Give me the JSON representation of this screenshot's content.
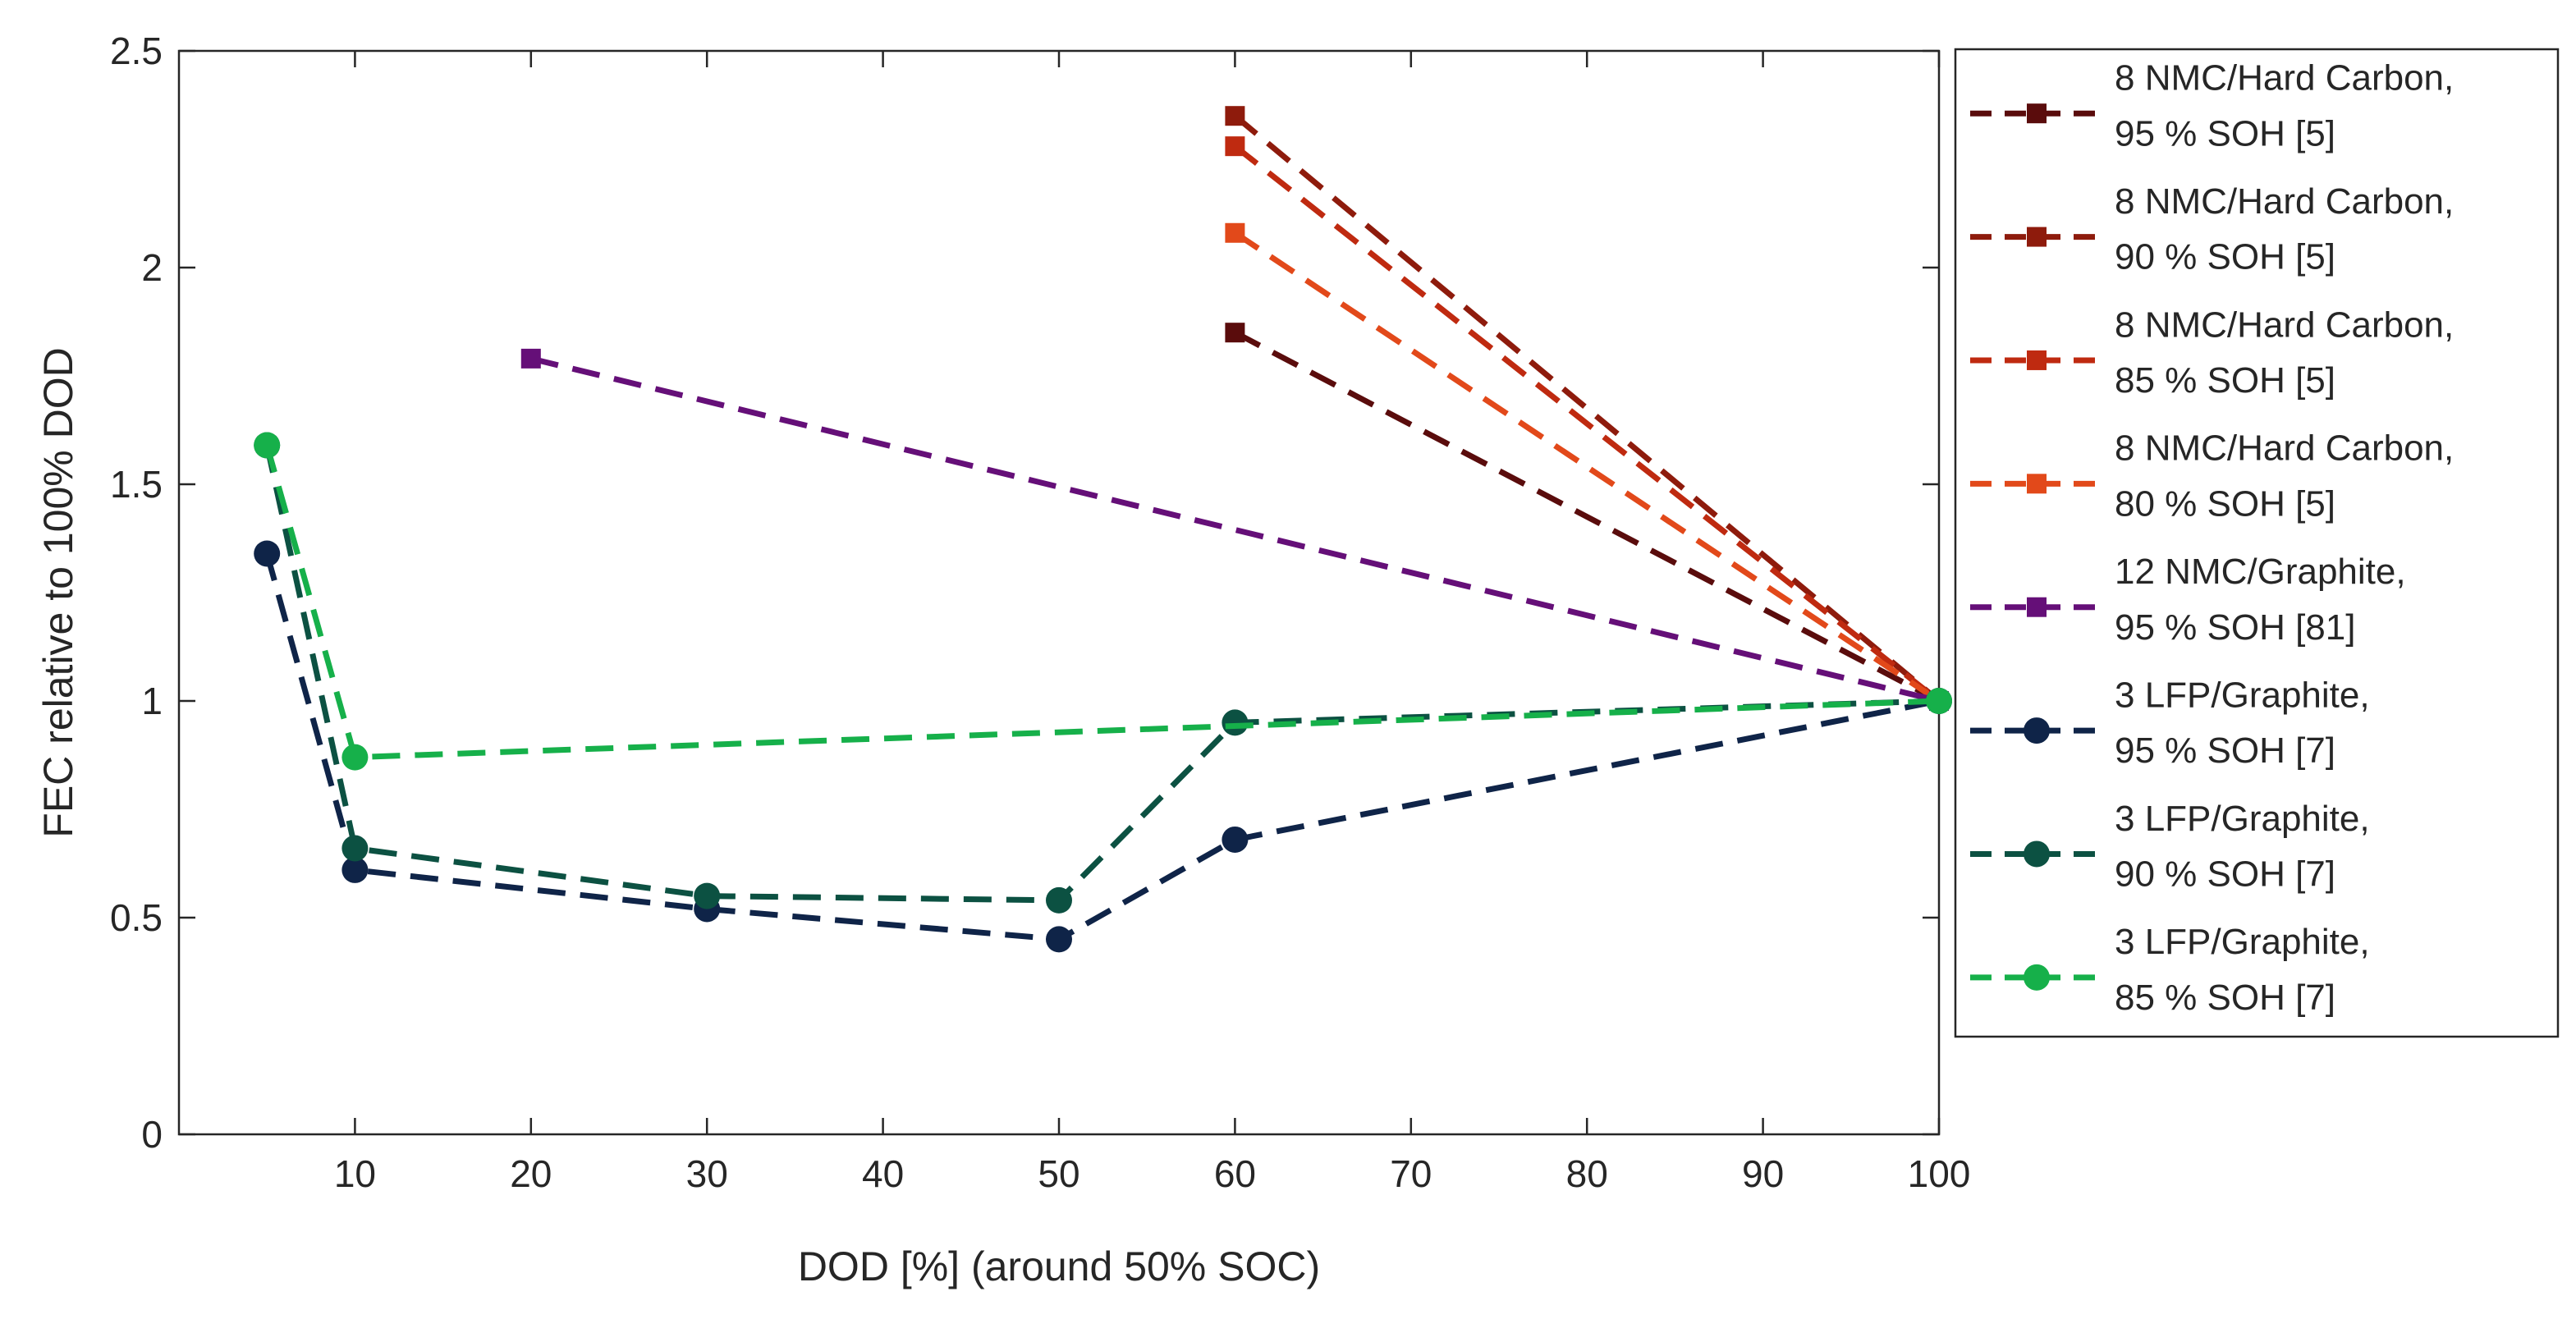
{
  "chart_data": {
    "type": "line",
    "title": "",
    "xlabel": "DOD [%] (around 50% SOC)",
    "ylabel": "FEC relative to 100% DOD",
    "xlim": [
      0,
      100
    ],
    "ylim": [
      0,
      2.5
    ],
    "xticks": [
      10,
      20,
      30,
      40,
      50,
      60,
      70,
      80,
      90,
      100
    ],
    "yticks": [
      0,
      0.5,
      1,
      1.5,
      2,
      2.5
    ],
    "ytick_labels": [
      "0",
      "0.5",
      "1",
      "1.5",
      "2",
      "2.5"
    ],
    "grid": false,
    "legend_position": "outside-right",
    "series": [
      {
        "name_line1": "8 NMC/Hard Carbon,",
        "name_line2": "95 % SOH [5]",
        "color": "#5a0c0c",
        "marker": "square",
        "x": [
          60,
          100
        ],
        "y": [
          1.85,
          1.0
        ]
      },
      {
        "name_line1": "8 NMC/Hard Carbon,",
        "name_line2": "90 % SOH [5]",
        "color": "#8e1b0c",
        "marker": "square",
        "x": [
          60,
          100
        ],
        "y": [
          2.35,
          1.0
        ]
      },
      {
        "name_line1": "8 NMC/Hard Carbon,",
        "name_line2": "85 % SOH [5]",
        "color": "#bf2a10",
        "marker": "square",
        "x": [
          60,
          100
        ],
        "y": [
          2.28,
          1.0
        ]
      },
      {
        "name_line1": "8 NMC/Hard Carbon,",
        "name_line2": "80 % SOH [5]",
        "color": "#e2491a",
        "marker": "square",
        "x": [
          60,
          100
        ],
        "y": [
          2.08,
          1.0
        ]
      },
      {
        "name_line1": "12 NMC/Graphite,",
        "name_line2": "95 % SOH [81]",
        "color": "#650f78",
        "marker": "square",
        "x": [
          20,
          100
        ],
        "y": [
          1.79,
          1.0
        ]
      },
      {
        "name_line1": "3 LFP/Graphite,",
        "name_line2": "95 % SOH [7]",
        "color": "#0f2448",
        "marker": "circle",
        "x": [
          5,
          10,
          30,
          50,
          60,
          100
        ],
        "y": [
          1.34,
          0.61,
          0.52,
          0.45,
          0.68,
          1.0
        ]
      },
      {
        "name_line1": "3 LFP/Graphite,",
        "name_line2": "90 % SOH [7]",
        "color": "#0c5142",
        "marker": "circle",
        "x": [
          5,
          10,
          30,
          50,
          60,
          100
        ],
        "y": [
          1.59,
          0.66,
          0.55,
          0.54,
          0.95,
          1.0
        ]
      },
      {
        "name_line1": "3 LFP/Graphite,",
        "name_line2": "85 % SOH [7]",
        "color": "#16b04a",
        "marker": "circle",
        "x": [
          5,
          10,
          100
        ],
        "y": [
          1.59,
          0.87,
          1.0
        ]
      }
    ]
  }
}
